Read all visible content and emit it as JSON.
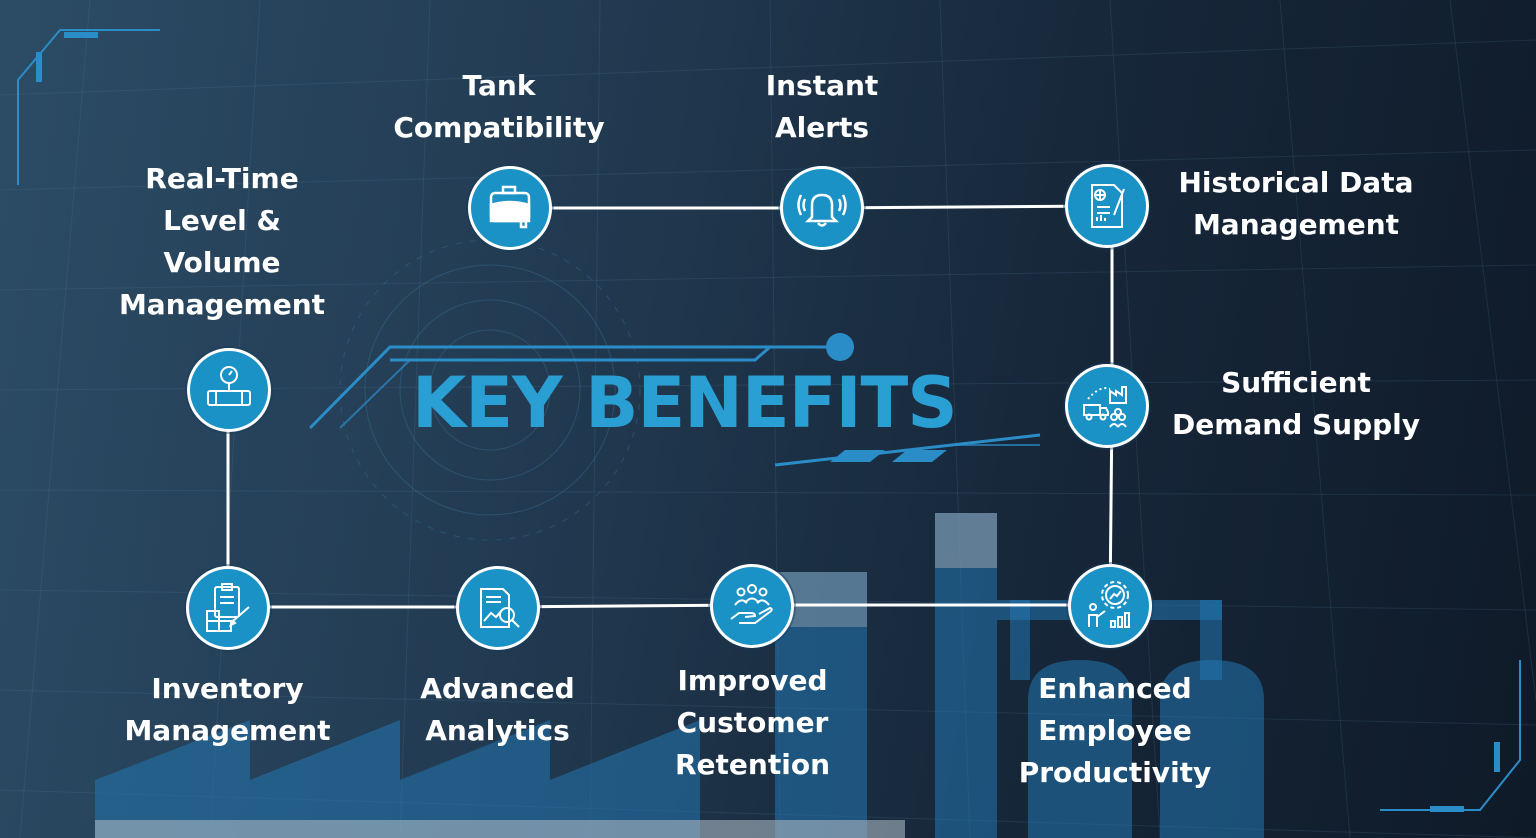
{
  "title": "KEY BENEFITS",
  "benefits": [
    {
      "id": "realtime",
      "lines": [
        "Real-Time",
        "Level &",
        "Volume",
        "Management"
      ],
      "icon": "pressure-gauge-icon"
    },
    {
      "id": "tank",
      "lines": [
        "Tank",
        "Compatibility"
      ],
      "icon": "tank-icon"
    },
    {
      "id": "alerts",
      "lines": [
        "Instant",
        "Alerts"
      ],
      "icon": "bell-icon"
    },
    {
      "id": "historical",
      "lines": [
        "Historical Data",
        "Management"
      ],
      "icon": "report-document-icon"
    },
    {
      "id": "demand",
      "lines": [
        "Sufficient",
        "Demand Supply"
      ],
      "icon": "supply-chain-icon"
    },
    {
      "id": "employee",
      "lines": [
        "Enhanced",
        "Employee",
        "Productivity"
      ],
      "icon": "gear-growth-icon"
    },
    {
      "id": "customer",
      "lines": [
        "Improved",
        "Customer",
        "Retention"
      ],
      "icon": "customer-hand-icon"
    },
    {
      "id": "analytics",
      "lines": [
        "Advanced",
        "Analytics"
      ],
      "icon": "analytics-magnifier-icon"
    },
    {
      "id": "inventory",
      "lines": [
        "Inventory",
        "Management"
      ],
      "icon": "inventory-clipboard-icon"
    }
  ],
  "colors": {
    "accent": "#2a9fd3",
    "node": "#1b92c6",
    "connector": "#ffffff"
  }
}
